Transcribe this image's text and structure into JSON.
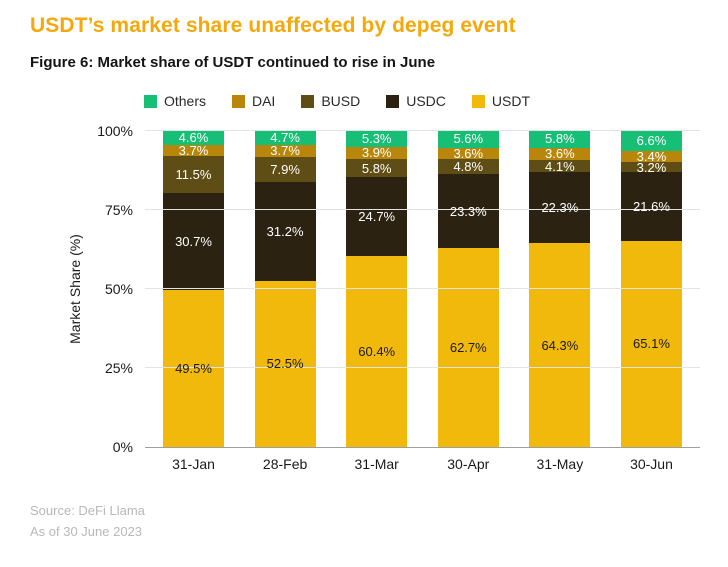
{
  "page": {
    "title": "USDT’s market share unaffected by depeg event",
    "subtitle": "Figure 6: Market share of USDT continued to rise in June",
    "source_line1": "Source: DeFi Llama",
    "source_line2": "As of 30 June 2023",
    "title_color": "#f5a80b",
    "source_text_color": "#b8b8b8"
  },
  "chart_data": {
    "type": "bar",
    "stacked": true,
    "title": "Figure 6: Market share of USDT continued to rise in June",
    "categories": [
      "31-Jan",
      "28-Feb",
      "31-Mar",
      "30-Apr",
      "31-May",
      "30-Jun"
    ],
    "series": [
      {
        "name": "Others",
        "color": "#17be75",
        "label_color": "#ffffff",
        "values": [
          4.6,
          4.7,
          5.3,
          5.6,
          5.8,
          6.6
        ]
      },
      {
        "name": "DAI",
        "color": "#b8860b",
        "label_color": "#ffffff",
        "values": [
          3.7,
          3.7,
          3.9,
          3.6,
          3.6,
          3.4
        ]
      },
      {
        "name": "BUSD",
        "color": "#5f4d16",
        "label_color": "#ffffff",
        "values": [
          11.5,
          7.9,
          5.8,
          4.8,
          4.1,
          3.2
        ]
      },
      {
        "name": "USDC",
        "color": "#2b2212",
        "label_color": "#ffffff",
        "values": [
          30.7,
          31.2,
          24.7,
          23.3,
          22.3,
          21.6
        ]
      },
      {
        "name": "USDT",
        "color": "#f0b90b",
        "label_color": "#1a1a1a",
        "values": [
          49.5,
          52.5,
          60.4,
          62.7,
          64.3,
          65.1
        ]
      }
    ],
    "xlabel": "",
    "ylabel": "Market Share (%)",
    "ylim": [
      0,
      100
    ],
    "y_ticks": [
      "0%",
      "25%",
      "50%",
      "75%",
      "100%"
    ],
    "grid": true,
    "legend_position": "top",
    "gridline_color": "#e3e3e3",
    "baseline_color": "#9e9e9e"
  }
}
